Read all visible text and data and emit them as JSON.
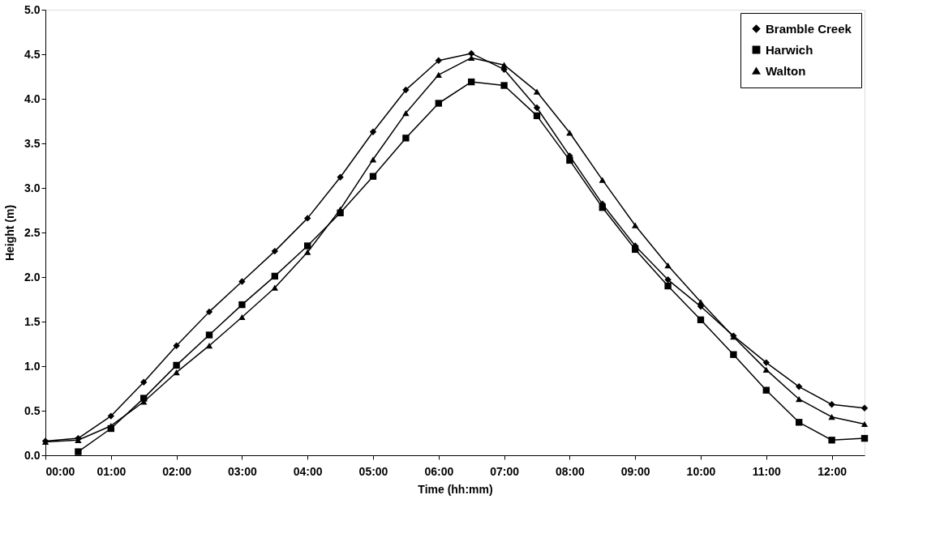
{
  "chart_data": {
    "type": "line",
    "xlabel": "Time (hh:mm)",
    "ylabel": "Height (m)",
    "x": [
      0,
      0.5,
      1,
      1.5,
      2,
      2.5,
      3,
      3.5,
      4,
      4.5,
      5,
      5.5,
      6,
      6.5,
      7,
      7.5,
      8,
      8.5,
      9,
      9.5,
      10,
      10.5,
      11,
      11.5,
      12,
      12.5
    ],
    "series": [
      {
        "name": "Bramble Creek",
        "color": "#000000",
        "marker": "diamond",
        "values": [
          0.16,
          0.19,
          0.44,
          0.82,
          1.23,
          1.61,
          1.95,
          2.29,
          2.66,
          3.12,
          3.63,
          4.1,
          4.43,
          4.51,
          4.33,
          3.9,
          3.36,
          2.82,
          2.35,
          1.97,
          1.67,
          1.34,
          1.04,
          0.77,
          0.57,
          0.53
        ]
      },
      {
        "name": "Harwich",
        "color": "#000000",
        "marker": "square",
        "values": [
          null,
          0.04,
          0.3,
          0.64,
          1.01,
          1.35,
          1.69,
          2.01,
          2.35,
          2.72,
          3.13,
          3.56,
          3.95,
          4.19,
          4.15,
          3.81,
          3.31,
          2.78,
          2.31,
          1.9,
          1.52,
          1.13,
          0.73,
          0.37,
          0.17,
          0.19
        ]
      },
      {
        "name": "Walton",
        "color": "#000000",
        "marker": "triangle",
        "values": [
          0.15,
          0.17,
          0.33,
          0.6,
          0.93,
          1.23,
          1.55,
          1.88,
          2.28,
          2.76,
          3.32,
          3.84,
          4.27,
          4.46,
          4.38,
          4.08,
          3.62,
          3.09,
          2.58,
          2.13,
          1.72,
          1.33,
          0.96,
          0.63,
          0.43,
          0.35
        ]
      }
    ],
    "xlim": [
      0,
      12.5
    ],
    "xticks": [
      {
        "value": 0,
        "label": "00:00"
      },
      {
        "value": 1,
        "label": "01:00"
      },
      {
        "value": 2,
        "label": "02:00"
      },
      {
        "value": 3,
        "label": "03:00"
      },
      {
        "value": 4,
        "label": "04:00"
      },
      {
        "value": 5,
        "label": "05:00"
      },
      {
        "value": 6,
        "label": "06:00"
      },
      {
        "value": 7,
        "label": "07:00"
      },
      {
        "value": 8,
        "label": "08:00"
      },
      {
        "value": 9,
        "label": "09:00"
      },
      {
        "value": 10,
        "label": "10:00"
      },
      {
        "value": 11,
        "label": "11:00"
      },
      {
        "value": 12,
        "label": "12:00"
      }
    ],
    "ylim": [
      0,
      5
    ],
    "yticks": [
      {
        "value": 0,
        "label": "0.0"
      },
      {
        "value": 0.5,
        "label": "0.5"
      },
      {
        "value": 1,
        "label": "1.0"
      },
      {
        "value": 1.5,
        "label": "1.5"
      },
      {
        "value": 2,
        "label": "2.0"
      },
      {
        "value": 2.5,
        "label": "2.5"
      },
      {
        "value": 3,
        "label": "3.0"
      },
      {
        "value": 3.5,
        "label": "3.5"
      },
      {
        "value": 4,
        "label": "4.0"
      },
      {
        "value": 4.5,
        "label": "4.5"
      },
      {
        "value": 5,
        "label": "5.0"
      }
    ],
    "grid": false,
    "legend": "top right",
    "line_style": "solid"
  }
}
